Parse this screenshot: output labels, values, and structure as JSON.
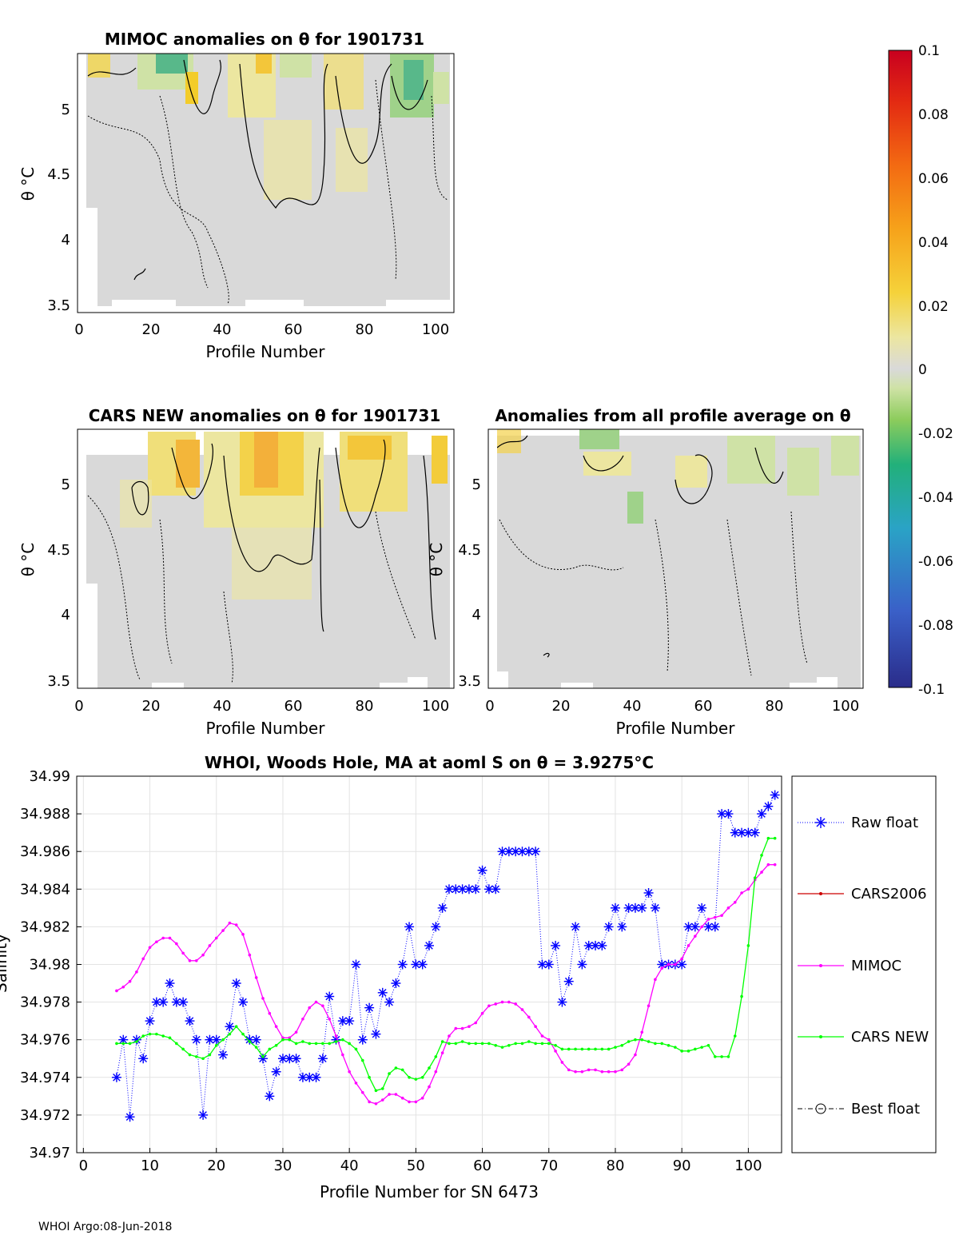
{
  "footer": "WHOI Argo:08-Jun-2018",
  "colorbar": {
    "ticks": [
      "0.1",
      "0.08",
      "0.06",
      "0.04",
      "0.02",
      "0",
      "-0.02",
      "-0.04",
      "-0.06",
      "-0.08",
      "-0.1"
    ],
    "range": [
      -0.1,
      0.1
    ]
  },
  "chart_data": [
    {
      "type": "heatmap",
      "title": "MIMOC anomalies on θ  for 1901731",
      "xlabel": "Profile Number",
      "ylabel": "θ °C",
      "xticks": [
        "0",
        "20",
        "40",
        "60",
        "80",
        "100"
      ],
      "yticks": [
        "5",
        "4.5",
        "4",
        "3.5"
      ],
      "xlim": [
        0,
        105
      ],
      "ylim": [
        3.45,
        5.42
      ]
    },
    {
      "type": "heatmap",
      "title": "CARS NEW anomalies on θ for 1901731",
      "xlabel": "Profile Number",
      "ylabel": "θ °C",
      "xticks": [
        "0",
        "20",
        "40",
        "60",
        "80",
        "100"
      ],
      "yticks": [
        "5",
        "4.5",
        "4",
        "3.5"
      ],
      "xlim": [
        0,
        105
      ],
      "ylim": [
        3.45,
        5.42
      ]
    },
    {
      "type": "heatmap",
      "title": "Anomalies from all profile average on θ",
      "xlabel": "Profile Number",
      "ylabel": "θ °C",
      "xticks": [
        "0",
        "20",
        "40",
        "60",
        "80",
        "100"
      ],
      "yticks": [
        "5",
        "4.5",
        "4",
        "3.5"
      ],
      "xlim": [
        0,
        105
      ],
      "ylim": [
        3.45,
        5.42
      ]
    },
    {
      "type": "line",
      "title": "WHOI, Woods Hole, MA at aoml S on θ = 3.9275",
      "title_unit": "°C",
      "xlabel": "Profile Number for SN 6473",
      "ylabel": "Salinity",
      "xlim": [
        -1,
        105
      ],
      "ylim": [
        34.97,
        34.99
      ],
      "xticks": [
        "0",
        "10",
        "20",
        "30",
        "40",
        "50",
        "60",
        "70",
        "80",
        "90",
        "100"
      ],
      "yticks": [
        "34.99",
        "34.988",
        "34.986",
        "34.984",
        "34.982",
        "34.98",
        "34.978",
        "34.976",
        "34.974",
        "34.972",
        "34.97"
      ],
      "legend": [
        "Raw float",
        "CARS2006",
        "MIMOC",
        "CARS NEW",
        "Best float"
      ],
      "series": [
        {
          "name": "Raw float",
          "color": "#0000ff",
          "x": [
            5,
            6,
            7,
            8,
            9,
            10,
            11,
            12,
            13,
            14,
            15,
            16,
            17,
            18,
            19,
            20,
            21,
            22,
            23,
            24,
            25,
            26,
            27,
            28,
            29,
            30,
            31,
            32,
            33,
            34,
            35,
            36,
            37,
            38,
            39,
            40,
            41,
            42,
            43,
            44,
            45,
            46,
            47,
            48,
            49,
            50,
            51,
            52,
            53,
            54,
            55,
            56,
            57,
            58,
            59,
            60,
            61,
            62,
            63,
            64,
            65,
            66,
            67,
            68,
            69,
            70,
            71,
            72,
            73,
            74,
            75,
            76,
            77,
            78,
            79,
            80,
            81,
            82,
            83,
            84,
            85,
            86,
            87,
            88,
            89,
            90,
            91,
            92,
            93,
            94,
            95,
            96,
            97,
            98,
            99,
            100,
            101,
            102,
            103,
            104
          ],
          "values": [
            34.974,
            34.976,
            34.9719,
            34.976,
            34.975,
            34.977,
            34.978,
            34.978,
            34.979,
            34.978,
            34.978,
            34.977,
            34.976,
            34.972,
            34.976,
            34.976,
            34.9752,
            34.9767,
            34.979,
            34.978,
            34.976,
            34.976,
            34.975,
            34.973,
            34.9743,
            34.975,
            34.975,
            34.975,
            34.974,
            34.974,
            34.974,
            34.975,
            34.9783,
            34.976,
            34.977,
            34.977,
            34.98,
            34.976,
            34.9777,
            34.9763,
            34.9785,
            34.978,
            34.979,
            34.98,
            34.982,
            34.98,
            34.98,
            34.981,
            34.982,
            34.983,
            34.984,
            34.984,
            34.984,
            34.984,
            34.984,
            34.985,
            34.984,
            34.984,
            34.986,
            34.986,
            34.986,
            34.986,
            34.986,
            34.986,
            34.98,
            34.98,
            34.981,
            34.978,
            34.9791,
            34.982,
            34.98,
            34.981,
            34.981,
            34.981,
            34.982,
            34.983,
            34.982,
            34.983,
            34.983,
            34.983,
            34.9838,
            34.983,
            34.98,
            34.98,
            34.98,
            34.98,
            34.982,
            34.982,
            34.983,
            34.982,
            34.982,
            34.988,
            34.988,
            34.987,
            34.987,
            34.987,
            34.987,
            34.988,
            34.9884,
            34.989
          ]
        },
        {
          "name": "MIMOC",
          "color": "#ff00ff",
          "x": [
            5,
            6,
            7,
            8,
            9,
            10,
            11,
            12,
            13,
            14,
            15,
            16,
            17,
            18,
            19,
            20,
            21,
            22,
            23,
            24,
            25,
            26,
            27,
            28,
            29,
            30,
            31,
            32,
            33,
            34,
            35,
            36,
            37,
            38,
            39,
            40,
            41,
            42,
            43,
            44,
            45,
            46,
            47,
            48,
            49,
            50,
            51,
            52,
            53,
            54,
            55,
            56,
            57,
            58,
            59,
            60,
            61,
            62,
            63,
            64,
            65,
            66,
            67,
            68,
            69,
            70,
            71,
            72,
            73,
            74,
            75,
            76,
            77,
            78,
            79,
            80,
            81,
            82,
            83,
            84,
            85,
            86,
            87,
            88,
            89,
            90,
            91,
            92,
            93,
            94,
            95,
            96,
            97,
            98,
            99,
            100,
            101,
            102,
            103,
            104
          ],
          "values": [
            34.9786,
            34.9788,
            34.9791,
            34.9796,
            34.9803,
            34.9809,
            34.9812,
            34.9814,
            34.9814,
            34.9811,
            34.9806,
            34.9802,
            34.9802,
            34.9805,
            34.981,
            34.9814,
            34.9818,
            34.9822,
            34.9821,
            34.9816,
            34.9805,
            34.9793,
            34.9782,
            34.9774,
            34.9767,
            34.9761,
            34.9761,
            34.9764,
            34.9771,
            34.9777,
            34.978,
            34.9778,
            34.9771,
            34.9762,
            34.9752,
            34.9743,
            34.9737,
            34.9732,
            34.9727,
            34.9726,
            34.9728,
            34.9731,
            34.9731,
            34.9729,
            34.9727,
            34.9727,
            34.9729,
            34.9735,
            34.9743,
            34.9753,
            34.9762,
            34.9766,
            34.9766,
            34.9767,
            34.9769,
            34.9774,
            34.9778,
            34.9779,
            34.978,
            34.978,
            34.9779,
            34.9776,
            34.9772,
            34.9767,
            34.9762,
            34.976,
            34.9754,
            34.9748,
            34.9744,
            34.9743,
            34.9743,
            34.9744,
            34.9744,
            34.9743,
            34.9743,
            34.9743,
            34.9744,
            34.9747,
            34.9752,
            34.9764,
            34.9778,
            34.9792,
            34.9798,
            34.98,
            34.98,
            34.9803,
            34.981,
            34.9815,
            34.982,
            34.9824,
            34.9825,
            34.9826,
            34.983,
            34.9833,
            34.9838,
            34.984,
            34.9845,
            34.9849,
            34.9853,
            34.9853
          ]
        },
        {
          "name": "CARS NEW",
          "color": "#00ff00",
          "x": [
            5,
            6,
            7,
            8,
            9,
            10,
            11,
            12,
            13,
            14,
            15,
            16,
            17,
            18,
            19,
            20,
            21,
            22,
            23,
            24,
            25,
            26,
            27,
            28,
            29,
            30,
            31,
            32,
            33,
            34,
            35,
            36,
            37,
            38,
            39,
            40,
            41,
            42,
            43,
            44,
            45,
            46,
            47,
            48,
            49,
            50,
            51,
            52,
            53,
            54,
            55,
            56,
            57,
            58,
            59,
            60,
            61,
            62,
            63,
            64,
            65,
            66,
            67,
            68,
            69,
            70,
            71,
            72,
            73,
            74,
            75,
            76,
            77,
            78,
            79,
            80,
            81,
            82,
            83,
            84,
            85,
            86,
            87,
            88,
            89,
            90,
            91,
            92,
            93,
            94,
            95,
            96,
            97,
            98,
            99,
            100,
            101,
            102,
            103,
            104
          ],
          "values": [
            34.9758,
            34.9758,
            34.9758,
            34.9759,
            34.9762,
            34.9763,
            34.9763,
            34.9762,
            34.9761,
            34.9758,
            34.9755,
            34.9752,
            34.9751,
            34.975,
            34.9752,
            34.9757,
            34.976,
            34.9763,
            34.9767,
            34.9763,
            34.9759,
            34.9756,
            34.9751,
            34.9755,
            34.9757,
            34.976,
            34.976,
            34.9758,
            34.9759,
            34.9758,
            34.9758,
            34.9758,
            34.9758,
            34.9759,
            34.976,
            34.9758,
            34.9755,
            34.9749,
            34.974,
            34.9733,
            34.9734,
            34.9742,
            34.9745,
            34.9744,
            34.974,
            34.9739,
            34.974,
            34.9745,
            34.9751,
            34.9759,
            34.9758,
            34.9758,
            34.9759,
            34.9758,
            34.9758,
            34.9758,
            34.9758,
            34.9757,
            34.9756,
            34.9757,
            34.9758,
            34.9758,
            34.9759,
            34.9758,
            34.9758,
            34.9758,
            34.9757,
            34.9755,
            34.9755,
            34.9755,
            34.9755,
            34.9755,
            34.9755,
            34.9755,
            34.9755,
            34.9756,
            34.9757,
            34.9759,
            34.976,
            34.976,
            34.9759,
            34.9758,
            34.9758,
            34.9757,
            34.9756,
            34.9754,
            34.9754,
            34.9755,
            34.9756,
            34.9757,
            34.9751,
            34.9751,
            34.9751,
            34.9762,
            34.9783,
            34.981,
            34.9846,
            34.9858,
            34.9867,
            34.9867
          ]
        }
      ]
    }
  ]
}
